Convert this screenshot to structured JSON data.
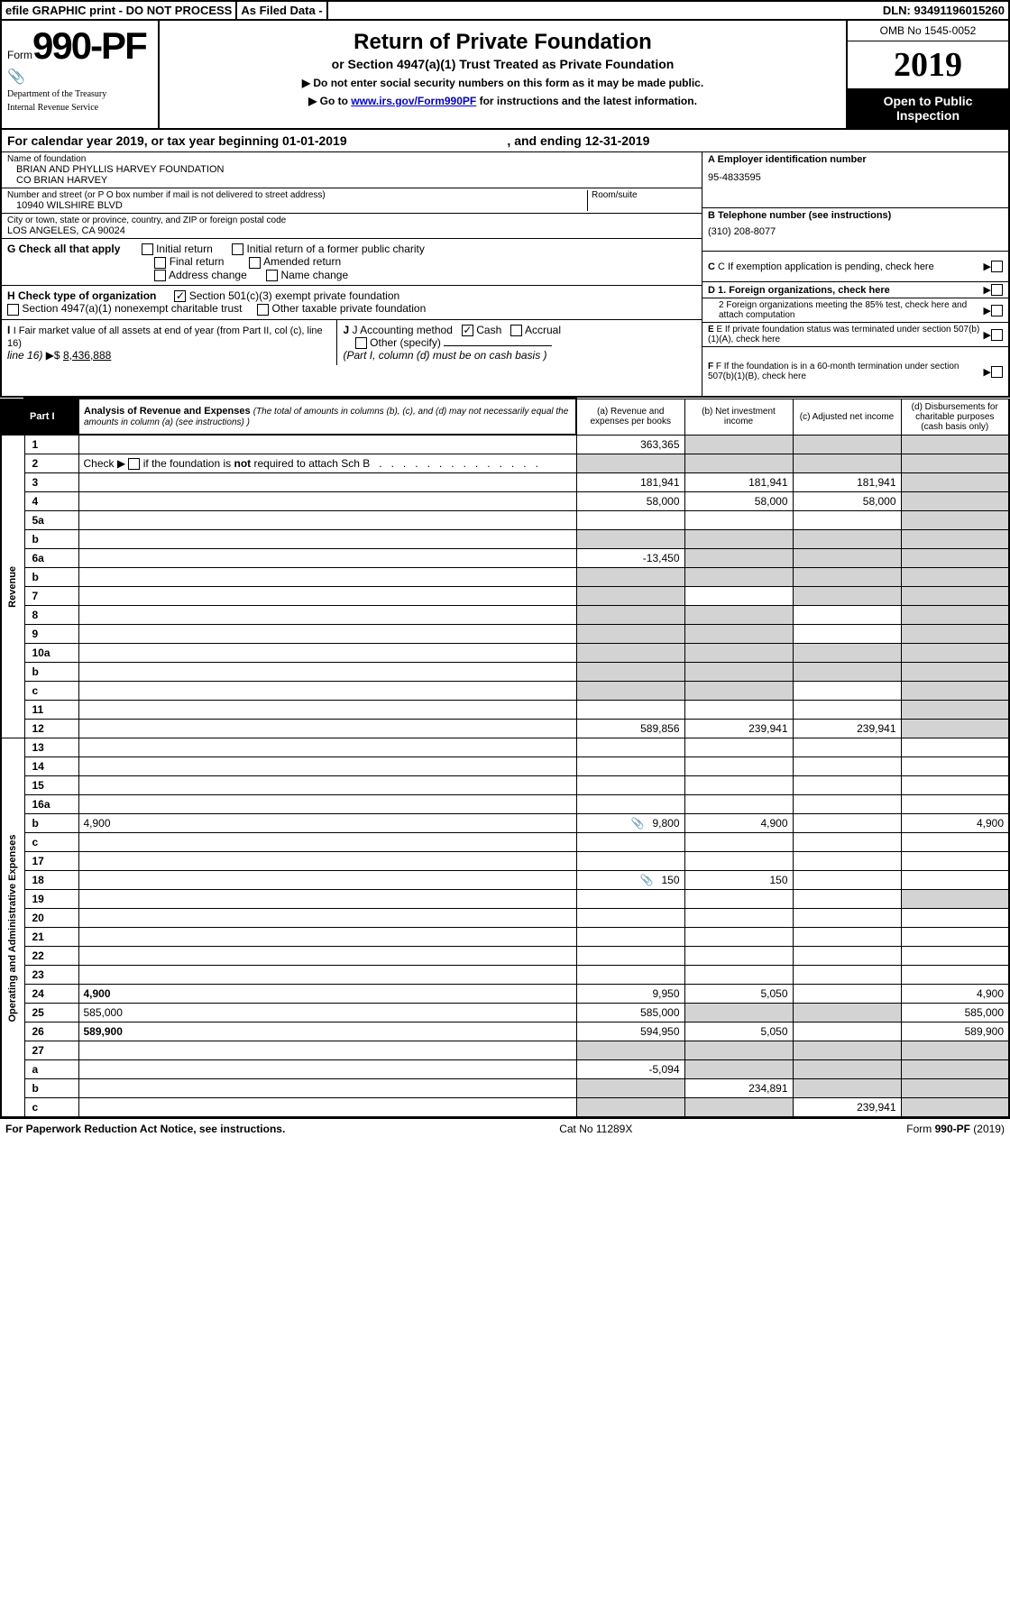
{
  "topbar": {
    "efile": "efile GRAPHIC print - DO NOT PROCESS",
    "asfiled": "As Filed Data -",
    "dln_label": "DLN:",
    "dln": "93491196015260"
  },
  "header": {
    "form_label": "Form",
    "form_no": "990-PF",
    "dept1": "Department of the Treasury",
    "dept2": "Internal Revenue Service",
    "title": "Return of Private Foundation",
    "subtitle": "or Section 4947(a)(1) Trust Treated as Private Foundation",
    "note1": "▶ Do not enter social security numbers on this form as it may be made public.",
    "note2_pre": "▶ Go to ",
    "note2_link": "www.irs.gov/Form990PF",
    "note2_post": " for instructions and the latest information.",
    "omb": "OMB No 1545-0052",
    "year": "2019",
    "inspection": "Open to Public Inspection"
  },
  "calyear": {
    "pre": "For calendar year 2019, or tax year beginning ",
    "begin": "01-01-2019",
    "mid": ", and ending ",
    "end": "12-31-2019"
  },
  "info": {
    "name_label": "Name of foundation",
    "name1": "BRIAN AND PHYLLIS HARVEY FOUNDATION",
    "name2": "CO BRIAN HARVEY",
    "addr_label": "Number and street (or P O  box number if mail is not delivered to street address)",
    "room_label": "Room/suite",
    "addr": "10940 WILSHIRE BLVD",
    "city_label": "City or town, state or province, country, and ZIP or foreign postal code",
    "city": "LOS ANGELES, CA  90024",
    "a_label": "A Employer identification number",
    "a_val": "95-4833595",
    "b_label": "B Telephone number (see instructions)",
    "b_val": "(310) 208-8077",
    "c_label": "C If exemption application is pending, check here",
    "d1_label": "D 1. Foreign organizations, check here",
    "d2_label": "2 Foreign organizations meeting the 85% test, check here and attach computation",
    "e_label": "E If private foundation status was terminated under section 507(b)(1)(A), check here",
    "f_label": "F If the foundation is in a 60-month termination under section 507(b)(1)(B), check here"
  },
  "checks": {
    "g_label": "G Check all that apply",
    "g_opts": [
      "Initial return",
      "Initial return of a former public charity",
      "Final return",
      "Amended return",
      "Address change",
      "Name change"
    ],
    "h_label": "H Check type of organization",
    "h1": "Section 501(c)(3) exempt private foundation",
    "h2": "Section 4947(a)(1) nonexempt charitable trust",
    "h3": "Other taxable private foundation",
    "i_label": "I Fair market value of all assets at end of year (from Part II, col  (c), line 16)",
    "i_val": "8,436,888",
    "j_label": "J Accounting method",
    "j1": "Cash",
    "j2": "Accrual",
    "j3": "Other (specify)",
    "j_note": "(Part I, column (d) must be on cash basis )"
  },
  "part1": {
    "tab": "Part I",
    "title": "Analysis of Revenue and Expenses",
    "title_note": "(The total of amounts in columns (b), (c), and (d) may not necessarily equal the amounts in column (a) (see instructions) )",
    "col_a": "(a) Revenue and expenses per books",
    "col_b": "(b) Net investment income",
    "col_c": "(c) Adjusted net income",
    "col_d": "(d) Disbursements for charitable purposes (cash basis only)",
    "side_rev": "Revenue",
    "side_exp": "Operating and Administrative Expenses"
  },
  "rows": [
    {
      "n": "1",
      "d": "",
      "a": "363,365",
      "b": "",
      "c": "",
      "grey_b": true,
      "grey_c": true,
      "grey_d": true
    },
    {
      "n": "2",
      "d": "",
      "a": "",
      "b": "",
      "c": "",
      "grey_a": true,
      "grey_b": true,
      "grey_c": true,
      "grey_d": true,
      "bold_not": true
    },
    {
      "n": "3",
      "d": "",
      "a": "181,941",
      "b": "181,941",
      "c": "181,941",
      "grey_d": true
    },
    {
      "n": "4",
      "d": "",
      "a": "58,000",
      "b": "58,000",
      "c": "58,000",
      "grey_d": true
    },
    {
      "n": "5a",
      "d": "",
      "a": "",
      "b": "",
      "c": "",
      "grey_d": true
    },
    {
      "n": "b",
      "d": "",
      "a": "",
      "b": "",
      "c": "",
      "grey_a": true,
      "grey_b": true,
      "grey_c": true,
      "grey_d": true
    },
    {
      "n": "6a",
      "d": "",
      "a": "-13,450",
      "b": "",
      "c": "",
      "grey_b": true,
      "grey_c": true,
      "grey_d": true
    },
    {
      "n": "b",
      "d": "",
      "a": "",
      "b": "",
      "c": "",
      "grey_a": true,
      "grey_b": true,
      "grey_c": true,
      "grey_d": true
    },
    {
      "n": "7",
      "d": "",
      "a": "",
      "b": "",
      "c": "",
      "grey_a": true,
      "grey_c": true,
      "grey_d": true
    },
    {
      "n": "8",
      "d": "",
      "a": "",
      "b": "",
      "c": "",
      "grey_a": true,
      "grey_b": true,
      "grey_d": true
    },
    {
      "n": "9",
      "d": "",
      "a": "",
      "b": "",
      "c": "",
      "grey_a": true,
      "grey_b": true,
      "grey_d": true
    },
    {
      "n": "10a",
      "d": "",
      "a": "",
      "b": "",
      "c": "",
      "grey_a": true,
      "grey_b": true,
      "grey_c": true,
      "grey_d": true
    },
    {
      "n": "b",
      "d": "",
      "a": "",
      "b": "",
      "c": "",
      "grey_a": true,
      "grey_b": true,
      "grey_c": true,
      "grey_d": true
    },
    {
      "n": "c",
      "d": "",
      "a": "",
      "b": "",
      "c": "",
      "grey_a": true,
      "grey_b": true,
      "grey_d": true
    },
    {
      "n": "11",
      "d": "",
      "a": "",
      "b": "",
      "c": "",
      "grey_d": true
    },
    {
      "n": "12",
      "d": "",
      "a": "589,856",
      "b": "239,941",
      "c": "239,941",
      "bold": true,
      "grey_d": true
    },
    {
      "n": "13",
      "d": "",
      "a": "",
      "b": "",
      "c": ""
    },
    {
      "n": "14",
      "d": "",
      "a": "",
      "b": "",
      "c": ""
    },
    {
      "n": "15",
      "d": "",
      "a": "",
      "b": "",
      "c": ""
    },
    {
      "n": "16a",
      "d": "",
      "a": "",
      "b": "",
      "c": ""
    },
    {
      "n": "b",
      "d": "4,900",
      "a": "9,800",
      "b": "4,900",
      "c": "",
      "icon": true
    },
    {
      "n": "c",
      "d": "",
      "a": "",
      "b": "",
      "c": ""
    },
    {
      "n": "17",
      "d": "",
      "a": "",
      "b": "",
      "c": ""
    },
    {
      "n": "18",
      "d": "",
      "a": "150",
      "b": "150",
      "c": "",
      "icon": true
    },
    {
      "n": "19",
      "d": "",
      "a": "",
      "b": "",
      "c": "",
      "grey_d": true
    },
    {
      "n": "20",
      "d": "",
      "a": "",
      "b": "",
      "c": ""
    },
    {
      "n": "21",
      "d": "",
      "a": "",
      "b": "",
      "c": ""
    },
    {
      "n": "22",
      "d": "",
      "a": "",
      "b": "",
      "c": ""
    },
    {
      "n": "23",
      "d": "",
      "a": "",
      "b": "",
      "c": ""
    },
    {
      "n": "24",
      "d": "4,900",
      "a": "9,950",
      "b": "5,050",
      "c": "",
      "bold": true
    },
    {
      "n": "25",
      "d": "585,000",
      "a": "585,000",
      "b": "",
      "c": "",
      "grey_b": true,
      "grey_c": true
    },
    {
      "n": "26",
      "d": "589,900",
      "a": "594,950",
      "b": "5,050",
      "c": "",
      "bold": true
    },
    {
      "n": "27",
      "d": "",
      "a": "",
      "b": "",
      "c": "",
      "grey_a": true,
      "grey_b": true,
      "grey_c": true,
      "grey_d": true
    },
    {
      "n": "a",
      "d": "",
      "a": "-5,094",
      "b": "",
      "c": "",
      "bold": true,
      "grey_b": true,
      "grey_c": true,
      "grey_d": true
    },
    {
      "n": "b",
      "d": "",
      "a": "",
      "b": "234,891",
      "c": "",
      "bold": true,
      "grey_a": true,
      "grey_c": true,
      "grey_d": true
    },
    {
      "n": "c",
      "d": "",
      "a": "",
      "b": "",
      "c": "239,941",
      "bold": true,
      "grey_a": true,
      "grey_b": true,
      "grey_d": true
    }
  ],
  "footer": {
    "left": "For Paperwork Reduction Act Notice, see instructions.",
    "mid": "Cat  No  11289X",
    "right": "Form 990-PF (2019)"
  }
}
